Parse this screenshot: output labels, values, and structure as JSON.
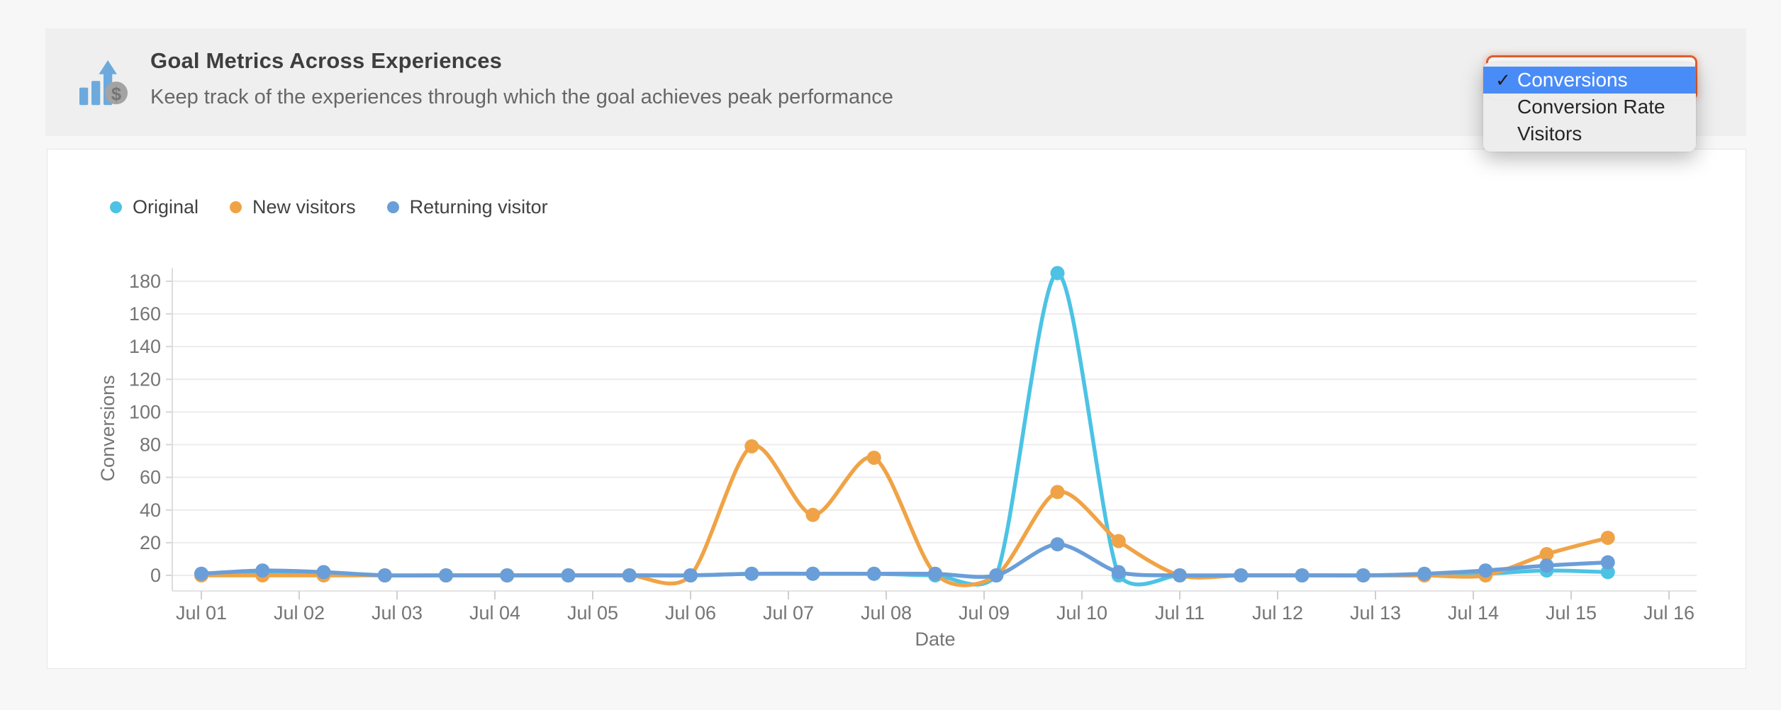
{
  "header": {
    "title": "Goal Metrics Across Experiences",
    "subtitle": "Keep track of the experiences through which the goal achieves peak performance",
    "icon": "bar-chart-with-dollar-icon"
  },
  "metric_dropdown": {
    "selected": "Conversions",
    "checkmark": "✓",
    "highlight_color": "#4a8cf7",
    "focus_border_color": "#e45f2e",
    "options": [
      {
        "label": "Conversions",
        "selected": true
      },
      {
        "label": "Conversion Rate",
        "selected": false
      },
      {
        "label": "Visitors",
        "selected": false
      }
    ]
  },
  "chart_data": {
    "type": "line",
    "title": "",
    "xlabel": "Date",
    "ylabel": "Conversions",
    "ylim": [
      0,
      180
    ],
    "y_ticks": [
      0,
      20,
      40,
      60,
      80,
      100,
      120,
      140,
      160,
      180
    ],
    "x_tick_labels": [
      "Jul 01",
      "Jul 02",
      "Jul 03",
      "Jul 04",
      "Jul 05",
      "Jul 06",
      "Jul 07",
      "Jul 08",
      "Jul 09",
      "Jul 10",
      "Jul 11",
      "Jul 12",
      "Jul 13",
      "Jul 14",
      "Jul 15",
      "Jul 16"
    ],
    "grid": true,
    "legend_position": "top-left",
    "x_days": [
      0,
      0.625,
      1.25,
      1.875,
      2.5,
      3.125,
      3.75,
      4.375,
      5,
      5.625,
      6.25,
      6.875,
      7.5,
      8.125,
      8.75,
      9.375,
      10,
      10.625,
      11.25,
      11.875,
      12.5,
      13.125,
      13.75,
      14.375
    ],
    "series": [
      {
        "name": "Original",
        "color": "#4cc3e4",
        "values": [
          1,
          1,
          1,
          0,
          0,
          0,
          0,
          0,
          0,
          1,
          1,
          1,
          0,
          0,
          185,
          0,
          0,
          0,
          0,
          0,
          0,
          1,
          3,
          2
        ]
      },
      {
        "name": "New visitors",
        "color": "#f0a346",
        "values": [
          0,
          0,
          0,
          0,
          0,
          0,
          0,
          0,
          0,
          79,
          37,
          72,
          1,
          0,
          51,
          21,
          0,
          0,
          0,
          0,
          0,
          0,
          13,
          23
        ]
      },
      {
        "name": "Returning visitor",
        "color": "#6a9ed8",
        "values": [
          1,
          3,
          2,
          0,
          0,
          0,
          0,
          0,
          0,
          1,
          1,
          1,
          1,
          0,
          19,
          2,
          0,
          0,
          0,
          0,
          1,
          3,
          6,
          8
        ]
      }
    ]
  }
}
